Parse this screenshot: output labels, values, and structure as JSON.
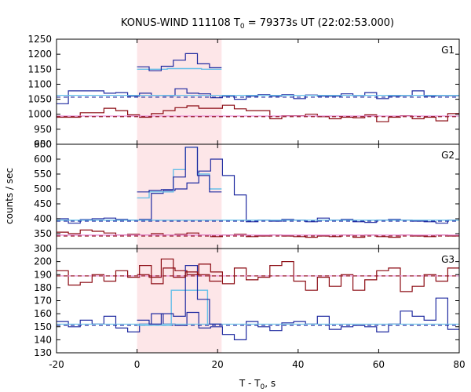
{
  "chart_data": {
    "type": "line",
    "title": "KONUS-WIND 111108 T",
    "title_sub": "0",
    "title_rest": " = 79373s UT (22:02:53.000)",
    "xlabel": "T - T",
    "xlabel_sub": "0",
    "xlabel_rest": ", s",
    "ylabel": "counts / sec",
    "xlim": [
      -20,
      80
    ],
    "x_ticks": [
      -20,
      0,
      20,
      40,
      60,
      80
    ],
    "highlight_interval": [
      0,
      21
    ],
    "colors": {
      "highlight": "#fde6e8",
      "series_a_hist": "#1f2aa0",
      "series_a_mean": "#1f2aa0",
      "series_b_hist": "#8b0a12",
      "series_b_mean": "#8b0a12",
      "series_a_fit": "#66bfe8",
      "series_b_fit": "#e88ad6"
    },
    "panels": [
      {
        "label": "G1",
        "ylim": [
          900,
          1250
        ],
        "y_ticks": [
          900,
          950,
          1000,
          1050,
          1100,
          1150,
          1200,
          1250
        ],
        "binwidth": 2.944,
        "x_start": -20,
        "series_a_values": [
          1035,
          1078,
          1078,
          1078,
          1070,
          1072,
          1060,
          1070,
          1063,
          1062,
          1085,
          1070,
          1068,
          1055,
          1060,
          1050,
          1060,
          1065,
          1060,
          1065,
          1052,
          1064,
          1060,
          1060,
          1068,
          1062,
          1072,
          1052,
          1060,
          1062,
          1078,
          1060,
          1062,
          1062
        ],
        "series_b_values": [
          990,
          990,
          1005,
          1005,
          1020,
          1012,
          998,
          990,
          1002,
          1012,
          1022,
          1028,
          1020,
          1020,
          1030,
          1018,
          1012,
          1012,
          985,
          995,
          995,
          1000,
          992,
          985,
          990,
          988,
          998,
          975,
          990,
          995,
          985,
          990,
          978,
          1002
        ],
        "series_a_mean": 1057,
        "series_b_mean": 992,
        "series_a_fit": 1063,
        "series_b_fit": 994,
        "burst_series_a": [
          [
            0,
            3,
            1158
          ],
          [
            3,
            6,
            1145
          ],
          [
            6,
            9,
            1160
          ],
          [
            9,
            12,
            1180
          ],
          [
            12,
            15,
            1202
          ],
          [
            15,
            18,
            1168
          ],
          [
            18,
            21,
            1155
          ]
        ],
        "burst_series_a_fit": [
          [
            0,
            7.5,
            1150
          ],
          [
            7.5,
            16,
            1152
          ],
          [
            16,
            21,
            1150
          ]
        ]
      },
      {
        "label": "G2",
        "ylim": [
          300,
          650
        ],
        "y_ticks": [
          300,
          350,
          400,
          450,
          500,
          550,
          600,
          650
        ],
        "binwidth": 2.944,
        "x_start": -20,
        "series_a_values": [
          400,
          385,
          397,
          400,
          402,
          398,
          395,
          398,
          485,
          495,
          500,
          520,
          560,
          600,
          545,
          480,
          390,
          395,
          392,
          398,
          395,
          390,
          402,
          395,
          398,
          390,
          388,
          395,
          398,
          395,
          392,
          390,
          385,
          395
        ],
        "series_b_values": [
          355,
          350,
          362,
          358,
          352,
          345,
          348,
          345,
          350,
          345,
          348,
          352,
          345,
          340,
          345,
          348,
          340,
          342,
          345,
          342,
          340,
          338,
          342,
          340,
          345,
          338,
          345,
          340,
          338,
          345,
          342,
          340,
          345,
          342
        ],
        "series_a_mean": 392,
        "series_b_mean": 342,
        "series_a_fit": 395,
        "series_b_fit": 345,
        "burst_series_a": [
          [
            0,
            3,
            490
          ],
          [
            3,
            6,
            495
          ],
          [
            6,
            9,
            498
          ],
          [
            9,
            12,
            540
          ],
          [
            12,
            15,
            640
          ],
          [
            15,
            18,
            545
          ],
          [
            18,
            21,
            490
          ]
        ],
        "burst_series_a_fit": [
          [
            0,
            3,
            470
          ],
          [
            3,
            6,
            490
          ],
          [
            6,
            9,
            490
          ],
          [
            9,
            12,
            565
          ],
          [
            12,
            15,
            640
          ],
          [
            15,
            18,
            550
          ],
          [
            18,
            21,
            500
          ]
        ]
      },
      {
        "label": "G3",
        "ylim": [
          130,
          210
        ],
        "y_ticks": [
          130,
          140,
          150,
          160,
          170,
          180,
          190,
          200
        ],
        "binwidth": 2.944,
        "x_start": -20,
        "series_a_values": [
          154,
          150,
          155,
          152,
          158,
          149,
          146,
          152,
          160,
          152,
          151,
          161,
          149,
          150,
          144,
          140,
          154,
          150,
          147,
          153,
          154,
          152,
          158,
          148,
          150,
          151,
          150,
          146,
          152,
          162,
          158,
          155,
          172,
          148
        ],
        "series_b_values": [
          193,
          182,
          184,
          190,
          185,
          193,
          188,
          197,
          183,
          195,
          193,
          190,
          198,
          192,
          183,
          195,
          186,
          188,
          197,
          200,
          185,
          178,
          188,
          181,
          190,
          178,
          186,
          193,
          195,
          177,
          181,
          190,
          185,
          195
        ],
        "series_a_mean": 151,
        "series_b_mean": 189,
        "series_a_fit": 152,
        "series_b_fit": 189,
        "burst_series_a": [
          [
            0,
            3,
            155
          ],
          [
            3,
            6,
            152
          ],
          [
            6,
            9,
            160
          ],
          [
            9,
            12,
            158
          ],
          [
            12,
            15,
            197
          ],
          [
            15,
            18,
            171
          ],
          [
            18,
            21,
            152
          ]
        ],
        "burst_series_a_fit": [
          [
            0,
            8.5,
            151
          ],
          [
            8.5,
            17.5,
            178
          ],
          [
            17.5,
            21,
            152
          ]
        ],
        "burst_series_b": [
          [
            0,
            3,
            190
          ],
          [
            3,
            6,
            188
          ],
          [
            6,
            9,
            202
          ],
          [
            9,
            12,
            188
          ],
          [
            12,
            15,
            192
          ],
          [
            15,
            18,
            190
          ],
          [
            18,
            21,
            185
          ]
        ]
      }
    ]
  }
}
